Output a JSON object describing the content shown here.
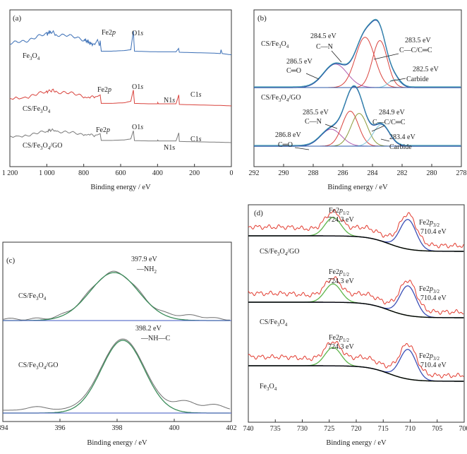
{
  "chart_data": [
    {
      "panel": "(a)",
      "type": "line",
      "xlabel": "Binding energy / eV",
      "xlim": [
        1200,
        0
      ],
      "ticks": [
        "1 200",
        "1 000",
        "800",
        "600",
        "400",
        "200",
        "0"
      ],
      "tick_values": [
        1200,
        1000,
        800,
        600,
        400,
        200,
        0
      ],
      "series": [
        {
          "name": "Fe3O4",
          "label_main": "Fe",
          "label_sub": [
            "3",
            "4"
          ],
          "color": "#3b6fb6",
          "points": [
            [
              1200,
              0.38
            ],
            [
              1150,
              0.52
            ],
            [
              1100,
              0.58
            ],
            [
              1050,
              0.72
            ],
            [
              1000,
              0.86
            ],
            [
              980,
              0.98
            ],
            [
              950,
              0.85
            ],
            [
              900,
              0.8
            ],
            [
              850,
              0.7
            ],
            [
              800,
              0.6
            ],
            [
              780,
              0.52
            ],
            [
              760,
              0.4
            ],
            [
              740,
              0.36
            ],
            [
              725,
              0.6
            ],
            [
              715,
              0.3
            ],
            [
              711,
              0.55
            ],
            [
              705,
              0.05
            ],
            [
              650,
              0.05
            ],
            [
              580,
              0.08
            ],
            [
              545,
              0.12
            ],
            [
              531,
              1.0
            ],
            [
              525,
              0.05
            ],
            [
              450,
              0.03
            ],
            [
              400,
              0.02
            ],
            [
              300,
              0.02
            ],
            [
              286,
              0.18
            ],
            [
              282,
              0.0
            ],
            [
              200,
              -0.02
            ],
            [
              100,
              -0.04
            ],
            [
              60,
              -0.06
            ],
            [
              56,
              0.12
            ],
            [
              50,
              -0.06
            ],
            [
              20,
              -0.1
            ],
            [
              0,
              -0.12
            ]
          ]
        },
        {
          "name": "CS/Fe3O4",
          "color": "#d9433d",
          "points": [
            [
              1200,
              0.3
            ],
            [
              1100,
              0.45
            ],
            [
              1050,
              0.55
            ],
            [
              1000,
              0.66
            ],
            [
              980,
              0.75
            ],
            [
              950,
              0.68
            ],
            [
              900,
              0.62
            ],
            [
              850,
              0.55
            ],
            [
              800,
              0.47
            ],
            [
              760,
              0.4
            ],
            [
              725,
              0.45
            ],
            [
              711,
              0.52
            ],
            [
              705,
              0.12
            ],
            [
              650,
              0.12
            ],
            [
              580,
              0.15
            ],
            [
              545,
              0.22
            ],
            [
              531,
              0.75
            ],
            [
              525,
              0.12
            ],
            [
              450,
              0.1
            ],
            [
              400,
              0.1
            ],
            [
              399,
              0.16
            ],
            [
              395,
              0.1
            ],
            [
              300,
              0.1
            ],
            [
              285,
              0.52
            ],
            [
              282,
              0.07
            ],
            [
              200,
              0.05
            ],
            [
              100,
              0.03
            ],
            [
              50,
              0.02
            ],
            [
              0,
              0.0
            ]
          ]
        },
        {
          "name": "CS/Fe3O4/GO",
          "color": "#7a7a7a",
          "points": [
            [
              1200,
              0.3
            ],
            [
              1100,
              0.46
            ],
            [
              1050,
              0.55
            ],
            [
              1000,
              0.66
            ],
            [
              980,
              0.76
            ],
            [
              950,
              0.68
            ],
            [
              900,
              0.62
            ],
            [
              850,
              0.55
            ],
            [
              800,
              0.48
            ],
            [
              760,
              0.42
            ],
            [
              725,
              0.46
            ],
            [
              711,
              0.53
            ],
            [
              705,
              0.13
            ],
            [
              650,
              0.13
            ],
            [
              580,
              0.16
            ],
            [
              545,
              0.22
            ],
            [
              531,
              0.7
            ],
            [
              525,
              0.12
            ],
            [
              450,
              0.1
            ],
            [
              400,
              0.1
            ],
            [
              399,
              0.15
            ],
            [
              395,
              0.1
            ],
            [
              300,
              0.1
            ],
            [
              285,
              0.58
            ],
            [
              282,
              0.07
            ],
            [
              200,
              0.05
            ],
            [
              100,
              0.03
            ],
            [
              50,
              0.02
            ],
            [
              0,
              0.0
            ]
          ]
        }
      ],
      "annotations": {
        "fe3o4": {
          "fe2p": "Fe2p",
          "o1s": "O1s"
        },
        "cs": {
          "fe2p": "Fe2p",
          "o1s": "O1s",
          "n1s": "N1s",
          "c1s": "C1s"
        },
        "csgo": {
          "fe2p": "Fe2p",
          "o1s": "O1s",
          "n1s": "N1s",
          "c1s": "C1s"
        }
      },
      "sample_labels": {
        "fe3o4": "Fe3O4",
        "cs": "CS/Fe3O4",
        "csgo": "CS/Fe3O4/GO"
      }
    },
    {
      "panel": "(b)",
      "type": "line",
      "xlabel": "Binding energy / eV",
      "xlim": [
        292,
        278
      ],
      "ticks": [
        "292",
        "290",
        "288",
        "286",
        "284",
        "282",
        "280",
        "278"
      ],
      "tick_values": [
        292,
        290,
        288,
        286,
        284,
        282,
        280,
        278
      ],
      "subpanels": [
        {
          "sample": "CS/Fe3O4",
          "peaks": [
            {
              "center": 286.5,
              "amplitude": 0.35,
              "width": 0.8,
              "color": "#b15fb0",
              "label": "286.5 eV",
              "group": "C═O"
            },
            {
              "center": 284.5,
              "amplitude": 0.75,
              "width": 0.65,
              "color": "#d9433d",
              "label": "284.5 eV",
              "group": "C—N"
            },
            {
              "center": 283.5,
              "amplitude": 0.7,
              "width": 0.5,
              "color": "#d9433d",
              "label": "283.5 eV",
              "group": "C—C/C═C"
            },
            {
              "center": 282.5,
              "amplitude": 0.12,
              "width": 0.4,
              "color": "#7fc5d8",
              "label": "282.5 eV",
              "group": "Carbide"
            }
          ]
        },
        {
          "sample": "CS/Fe3O4/GO",
          "peaks": [
            {
              "center": 286.8,
              "amplitude": 0.3,
              "width": 0.7,
              "color": "#b15fb0",
              "label": "286.8 eV",
              "group": "C═O"
            },
            {
              "center": 285.5,
              "amplitude": 0.62,
              "width": 0.55,
              "color": "#d9433d",
              "label": "285.5 eV",
              "group": "C—N"
            },
            {
              "center": 284.9,
              "amplitude": 0.58,
              "width": 0.55,
              "color": "#8a9a3a",
              "label": "284.9 eV",
              "group": "C—C/C═C"
            },
            {
              "center": 283.4,
              "amplitude": 0.38,
              "width": 0.55,
              "color": "#7fc5d8",
              "label": "283.4 eV",
              "group": "Carbide"
            }
          ]
        }
      ]
    },
    {
      "panel": "(c)",
      "type": "line",
      "xlabel": "Binding energy / eV",
      "xlim": [
        394,
        402
      ],
      "ticks": [
        "394",
        "396",
        "398",
        "400",
        "402"
      ],
      "tick_values": [
        394,
        396,
        398,
        400,
        402
      ],
      "subpanels": [
        {
          "sample": "CS/Fe3O4",
          "peak_center": 397.9,
          "label": "397.9 eV",
          "group": "—NH2"
        },
        {
          "sample": "CS/Fe3O4/GO",
          "peak_center": 398.2,
          "label": "398.2 eV",
          "group": "—NH—C"
        }
      ]
    },
    {
      "panel": "(d)",
      "type": "line",
      "xlabel": "Binding energy / eV",
      "xlim": [
        740,
        700
      ],
      "ticks": [
        "740",
        "735",
        "730",
        "725",
        "720",
        "715",
        "710",
        "705",
        "700"
      ],
      "tick_values": [
        740,
        735,
        730,
        725,
        720,
        715,
        710,
        705,
        700
      ],
      "subpanels": [
        {
          "sample": "CS/Fe3O4/GO",
          "p12_label": "Fe2p1/2",
          "p12_energy": "724.3 eV",
          "p32_label": "Fe2p3/2",
          "p32_energy": "710.4 eV"
        },
        {
          "sample": "CS/Fe3O4",
          "p12_label": "Fe2p1/2",
          "p12_energy": "724.3 eV",
          "p32_label": "Fe2p3/2",
          "p32_energy": "710.4 eV"
        },
        {
          "sample": "Fe3O4",
          "p12_label": "Fe2p1/2",
          "p12_energy": "724.3 eV",
          "p32_label": "Fe2p3/2",
          "p32_energy": "710.4 eV"
        }
      ],
      "colors": {
        "raw": "#e23a2e",
        "fit12": "#5db54a",
        "fit32": "#3b4fb6",
        "background": "#000000"
      }
    }
  ]
}
